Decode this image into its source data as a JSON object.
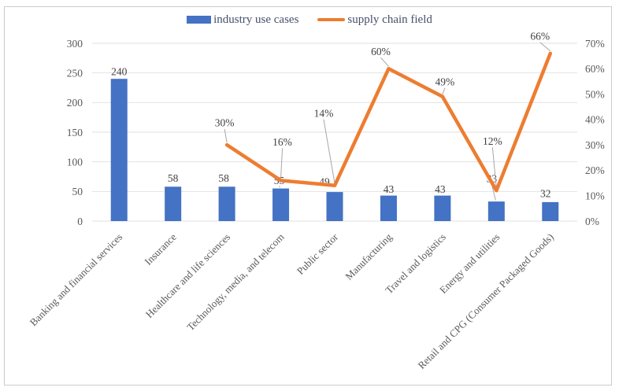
{
  "figure": {
    "background": "#ffffff",
    "border_color": "#cbcbcb"
  },
  "legend": {
    "position": "top",
    "items": [
      {
        "label": "industry use cases",
        "marker": "bar-swatch",
        "color": "#4472C4"
      },
      {
        "label": "supply chain field",
        "marker": "line-swatch",
        "color": "#ED7D31"
      }
    ]
  },
  "chart_data": {
    "type": "combo-bar-line",
    "title": "",
    "categories": [
      "Banking and financial services",
      "Insurance",
      "Healthcare and life sciences",
      "Technology, media, and telecom",
      "Public sector",
      "Manufacturing",
      "Travel and logistics",
      "Energy and utilities",
      "Retail and CPG (Consumer Packaged Goods)"
    ],
    "series": [
      {
        "name": "industry use cases",
        "type": "bar",
        "axis": "left",
        "color": "#4472C4",
        "values": [
          240,
          58,
          58,
          55,
          49,
          43,
          43,
          33,
          32
        ],
        "data_labels": [
          "240",
          "58",
          "58",
          "55",
          "49",
          "43",
          "43",
          "33",
          "32"
        ]
      },
      {
        "name": "supply chain field",
        "type": "line",
        "axis": "right",
        "color": "#ED7D31",
        "values": [
          null,
          null,
          30,
          16,
          14,
          60,
          49,
          12,
          66
        ],
        "data_labels": [
          null,
          null,
          "30%",
          "16%",
          "14%",
          "60%",
          "49%",
          "12%",
          "66%"
        ]
      }
    ],
    "left_axis": {
      "min": 0,
      "max": 300,
      "step": 50,
      "tick_labels": [
        "0",
        "50",
        "100",
        "150",
        "200",
        "250",
        "300"
      ]
    },
    "right_axis": {
      "min": 0,
      "max": 70,
      "step": 10,
      "tick_labels": [
        "0%",
        "10%",
        "20%",
        "30%",
        "40%",
        "50%",
        "60%",
        "70%"
      ]
    },
    "gridlines": "horizontal",
    "gridline_color": "#e2e2e2",
    "leader_line_color": "#a6a6a6",
    "legend_position": "top"
  }
}
